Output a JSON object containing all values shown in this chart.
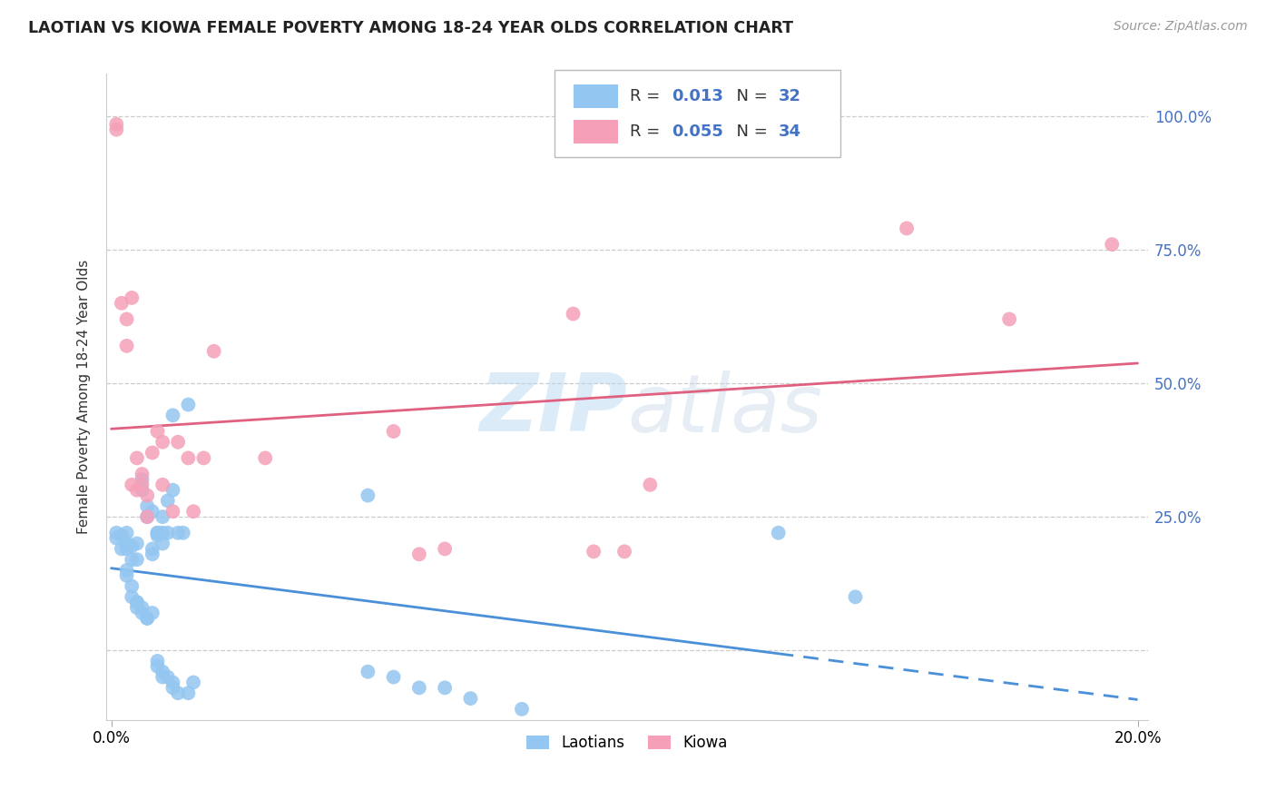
{
  "title": "LAOTIAN VS KIOWA FEMALE POVERTY AMONG 18-24 YEAR OLDS CORRELATION CHART",
  "source": "Source: ZipAtlas.com",
  "ylabel": "Female Poverty Among 18-24 Year Olds",
  "xlim": [
    -0.001,
    0.202
  ],
  "ylim": [
    -0.13,
    1.08
  ],
  "yticks": [
    0.0,
    0.25,
    0.5,
    0.75,
    1.0
  ],
  "ytick_labels": [
    "",
    "25.0%",
    "50.0%",
    "75.0%",
    "100.0%"
  ],
  "laotian_R": 0.013,
  "laotian_N": 32,
  "kiowa_R": 0.055,
  "kiowa_N": 34,
  "laotian_color": "#93c6f0",
  "kiowa_color": "#f5a0b8",
  "laotian_line_color": "#4a90d9",
  "kiowa_line_color": "#e06080",
  "watermark_zip": "ZIP",
  "watermark_atlas": "atlas",
  "laotian_x": [
    0.001,
    0.002,
    0.003,
    0.003,
    0.003,
    0.004,
    0.004,
    0.005,
    0.005,
    0.006,
    0.006,
    0.007,
    0.007,
    0.008,
    0.008,
    0.008,
    0.009,
    0.009,
    0.009,
    0.01,
    0.01,
    0.01,
    0.011,
    0.011,
    0.012,
    0.012,
    0.013,
    0.014,
    0.015,
    0.05,
    0.13,
    0.145
  ],
  "laotian_y": [
    0.22,
    0.215,
    0.19,
    0.2,
    0.22,
    0.195,
    0.17,
    0.2,
    0.17,
    0.3,
    0.32,
    0.25,
    0.27,
    0.18,
    0.19,
    0.26,
    0.22,
    0.215,
    0.22,
    0.2,
    0.22,
    0.25,
    0.28,
    0.22,
    0.44,
    0.3,
    0.22,
    0.22,
    0.46,
    0.29,
    0.22,
    0.1
  ],
  "laotian_x2": [
    0.001,
    0.002,
    0.003,
    0.003,
    0.004,
    0.004,
    0.005,
    0.005,
    0.005,
    0.006,
    0.006,
    0.007,
    0.007,
    0.008,
    0.009,
    0.009,
    0.01,
    0.01,
    0.011,
    0.012,
    0.012,
    0.013,
    0.015,
    0.016,
    0.05,
    0.055,
    0.06,
    0.065,
    0.07,
    0.08
  ],
  "laotian_y2": [
    0.21,
    0.19,
    0.14,
    0.15,
    0.12,
    0.1,
    0.09,
    0.08,
    0.09,
    0.07,
    0.08,
    0.06,
    0.06,
    0.07,
    -0.02,
    -0.03,
    -0.04,
    -0.05,
    -0.05,
    -0.06,
    -0.07,
    -0.08,
    -0.08,
    -0.06,
    -0.04,
    -0.05,
    -0.07,
    -0.07,
    -0.09,
    -0.11
  ],
  "kiowa_x": [
    0.001,
    0.001,
    0.002,
    0.003,
    0.003,
    0.004,
    0.004,
    0.005,
    0.005,
    0.006,
    0.006,
    0.007,
    0.007,
    0.008,
    0.009,
    0.01,
    0.01,
    0.012,
    0.013,
    0.015,
    0.016,
    0.018,
    0.02,
    0.03,
    0.055,
    0.06,
    0.065,
    0.09,
    0.094,
    0.1,
    0.105,
    0.155,
    0.175,
    0.195
  ],
  "kiowa_y": [
    0.985,
    0.975,
    0.65,
    0.62,
    0.57,
    0.66,
    0.31,
    0.3,
    0.36,
    0.31,
    0.33,
    0.29,
    0.25,
    0.37,
    0.41,
    0.39,
    0.31,
    0.26,
    0.39,
    0.36,
    0.26,
    0.36,
    0.56,
    0.36,
    0.41,
    0.18,
    0.19,
    0.63,
    0.185,
    0.185,
    0.31,
    0.79,
    0.62,
    0.76
  ]
}
